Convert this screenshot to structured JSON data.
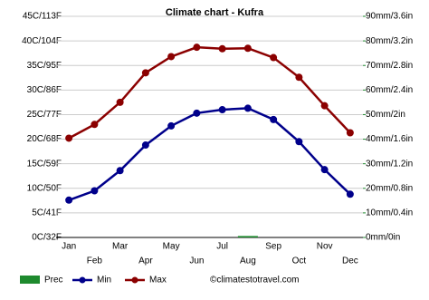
{
  "chart_data": {
    "type": "climate",
    "title": "Climate chart - Kufra",
    "categories": [
      "Jan",
      "Feb",
      "Mar",
      "Apr",
      "May",
      "Jun",
      "Jul",
      "Aug",
      "Sep",
      "Oct",
      "Nov",
      "Dec"
    ],
    "series": [
      {
        "name": "Prec",
        "type": "bar",
        "axis": "y2",
        "color": "#1e8a2e",
        "values": [
          0,
          0,
          0,
          0,
          0,
          0,
          0,
          0.6,
          0,
          0,
          0,
          0
        ]
      },
      {
        "name": "Min",
        "type": "line",
        "color": "#00008b",
        "values": [
          7.6,
          9.5,
          13.6,
          18.8,
          22.7,
          25.3,
          26,
          26.3,
          24,
          19.5,
          13.8,
          8.8
        ]
      },
      {
        "name": "Max",
        "type": "line",
        "color": "#8b0000",
        "values": [
          20.2,
          23,
          27.5,
          33.5,
          36.8,
          38.7,
          38.4,
          38.5,
          36.6,
          32.6,
          26.8,
          21.3
        ]
      }
    ],
    "ylim": [
      0,
      45
    ],
    "yticks": [
      {
        "value": 0,
        "label": "0C/32F"
      },
      {
        "value": 5,
        "label": "5C/41F"
      },
      {
        "value": 10,
        "label": "10C/50F"
      },
      {
        "value": 15,
        "label": "15C/59F"
      },
      {
        "value": 20,
        "label": "20C/68F"
      },
      {
        "value": 25,
        "label": "25C/77F"
      },
      {
        "value": 30,
        "label": "30C/86F"
      },
      {
        "value": 35,
        "label": "35C/95F"
      },
      {
        "value": 40,
        "label": "40C/104F"
      },
      {
        "value": 45,
        "label": "45C/113F"
      }
    ],
    "y2lim": [
      0,
      90
    ],
    "y2ticks": [
      {
        "value": 0,
        "label": "0mm/0in"
      },
      {
        "value": 10,
        "label": "10mm/0.4in"
      },
      {
        "value": 20,
        "label": "20mm/0.8in"
      },
      {
        "value": 30,
        "label": "30mm/1.2in"
      },
      {
        "value": 40,
        "label": "40mm/1.6in"
      },
      {
        "value": 50,
        "label": "50mm/2in"
      },
      {
        "value": 60,
        "label": "60mm/2.4in"
      },
      {
        "value": 70,
        "label": "70mm/2.8in"
      },
      {
        "value": 80,
        "label": "80mm/3.2in"
      },
      {
        "value": 90,
        "label": "90mm/3.6in"
      }
    ],
    "grid": true,
    "legend": "bottom",
    "annotation": "©climatestotravel.com"
  }
}
